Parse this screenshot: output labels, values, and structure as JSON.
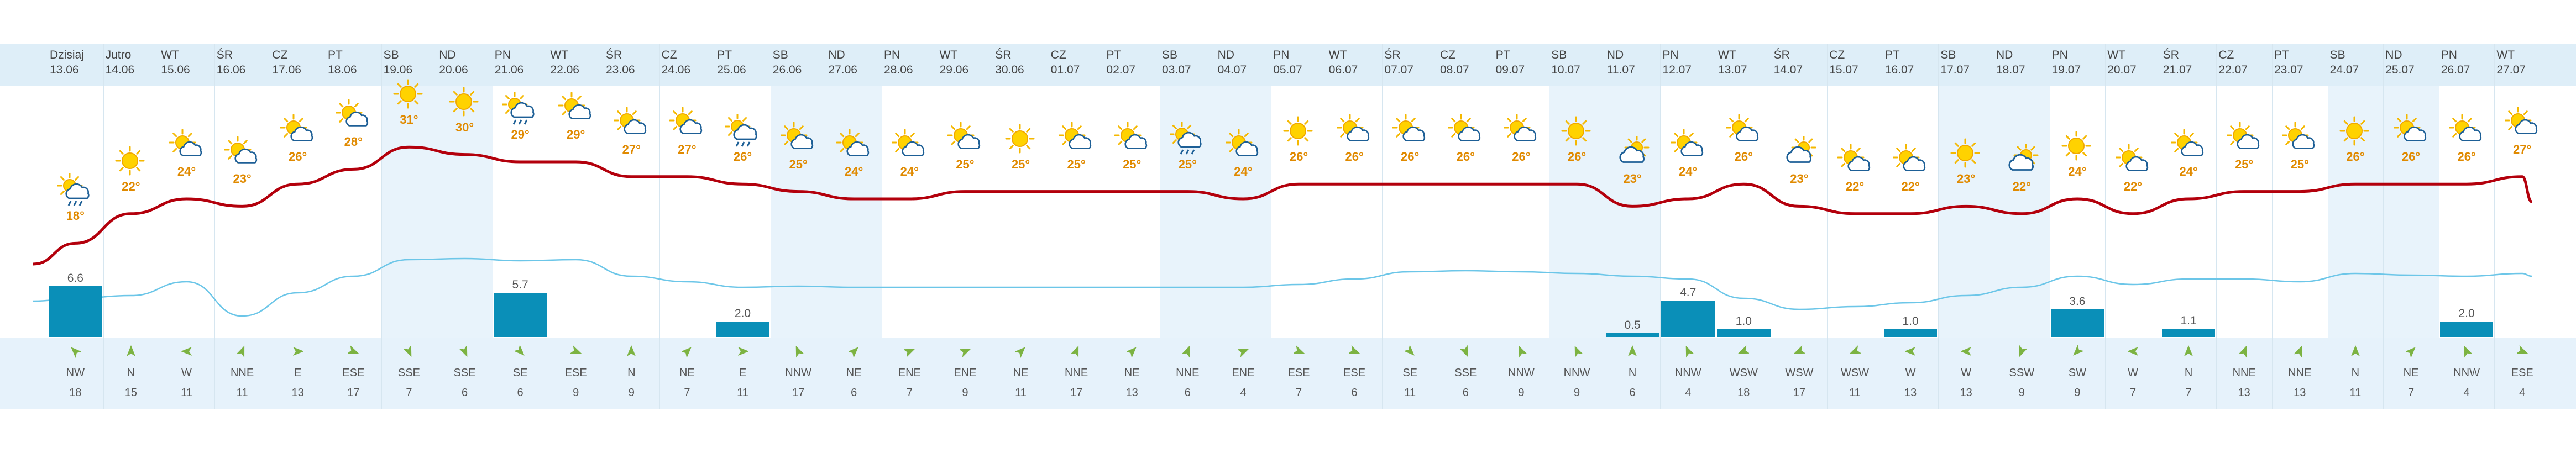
{
  "colors": {
    "header_bg": "#deeef8",
    "weekend_bg": "#e8f3fb",
    "wind_bg": "#e6f2fb",
    "temp_line": "#b3000c",
    "rain_line": "#6cc6e8",
    "bar": "#0a8fb8",
    "arrow": "#7cb342",
    "temp_label": "#e08a00"
  },
  "days": [
    {
      "name": "Dzisiaj",
      "date": "13.06",
      "temp": "18°",
      "icon": "cloud-rain-sun",
      "rain": "6.6",
      "rain_value": 6.6,
      "wdir": "NW",
      "wspd": "18",
      "wind_angle": 315,
      "weekend": false
    },
    {
      "name": "Jutro",
      "date": "14.06",
      "temp": "22°",
      "icon": "sun",
      "rain": "",
      "rain_value": 0,
      "wdir": "N",
      "wspd": "15",
      "wind_angle": 0,
      "weekend": false
    },
    {
      "name": "WT",
      "date": "15.06",
      "temp": "24°",
      "icon": "sun-cloud",
      "rain": "",
      "rain_value": 0,
      "wdir": "W",
      "wspd": "11",
      "wind_angle": 270,
      "weekend": false
    },
    {
      "name": "ŚR",
      "date": "16.06",
      "temp": "23°",
      "icon": "sun-cloud",
      "rain": "",
      "rain_value": 0,
      "wdir": "NNE",
      "wspd": "11",
      "wind_angle": 22,
      "weekend": false
    },
    {
      "name": "CZ",
      "date": "17.06",
      "temp": "26°",
      "icon": "sun-cloud",
      "rain": "",
      "rain_value": 0,
      "wdir": "E",
      "wspd": "13",
      "wind_angle": 90,
      "weekend": false
    },
    {
      "name": "PT",
      "date": "18.06",
      "temp": "28°",
      "icon": "sun-cloud",
      "rain": "",
      "rain_value": 0,
      "wdir": "ESE",
      "wspd": "17",
      "wind_angle": 112,
      "weekend": false
    },
    {
      "name": "SB",
      "date": "19.06",
      "temp": "31°",
      "icon": "sun",
      "rain": "",
      "rain_value": 0,
      "wdir": "SSE",
      "wspd": "7",
      "wind_angle": 157,
      "weekend": true
    },
    {
      "name": "ND",
      "date": "20.06",
      "temp": "30°",
      "icon": "sun",
      "rain": "",
      "rain_value": 0,
      "wdir": "SSE",
      "wspd": "6",
      "wind_angle": 157,
      "weekend": true
    },
    {
      "name": "PN",
      "date": "21.06",
      "temp": "29°",
      "icon": "cloud-rain-sun",
      "rain": "5.7",
      "rain_value": 5.7,
      "wdir": "SE",
      "wspd": "6",
      "wind_angle": 135,
      "weekend": false
    },
    {
      "name": "WT",
      "date": "22.06",
      "temp": "29°",
      "icon": "sun-cloud",
      "rain": "",
      "rain_value": 0,
      "wdir": "ESE",
      "wspd": "9",
      "wind_angle": 112,
      "weekend": false
    },
    {
      "name": "ŚR",
      "date": "23.06",
      "temp": "27°",
      "icon": "sun-cloud",
      "rain": "",
      "rain_value": 0,
      "wdir": "N",
      "wspd": "9",
      "wind_angle": 0,
      "weekend": false
    },
    {
      "name": "CZ",
      "date": "24.06",
      "temp": "27°",
      "icon": "sun-cloud",
      "rain": "",
      "rain_value": 0,
      "wdir": "NE",
      "wspd": "7",
      "wind_angle": 45,
      "weekend": false
    },
    {
      "name": "PT",
      "date": "25.06",
      "temp": "26°",
      "icon": "cloud-rain-sun",
      "rain": "2.0",
      "rain_value": 2.0,
      "wdir": "E",
      "wspd": "11",
      "wind_angle": 90,
      "weekend": false
    },
    {
      "name": "SB",
      "date": "26.06",
      "temp": "25°",
      "icon": "sun-cloud",
      "rain": "",
      "rain_value": 0,
      "wdir": "NNW",
      "wspd": "17",
      "wind_angle": 337,
      "weekend": true
    },
    {
      "name": "ND",
      "date": "27.06",
      "temp": "24°",
      "icon": "sun-cloud",
      "rain": "",
      "rain_value": 0,
      "wdir": "NE",
      "wspd": "6",
      "wind_angle": 45,
      "weekend": true
    },
    {
      "name": "PN",
      "date": "28.06",
      "temp": "24°",
      "icon": "sun-cloud",
      "rain": "",
      "rain_value": 0,
      "wdir": "ENE",
      "wspd": "7",
      "wind_angle": 67,
      "weekend": false
    },
    {
      "name": "WT",
      "date": "29.06",
      "temp": "25°",
      "icon": "sun-cloud",
      "rain": "",
      "rain_value": 0,
      "wdir": "ENE",
      "wspd": "9",
      "wind_angle": 67,
      "weekend": false
    },
    {
      "name": "ŚR",
      "date": "30.06",
      "temp": "25°",
      "icon": "sun",
      "rain": "",
      "rain_value": 0,
      "wdir": "NE",
      "wspd": "11",
      "wind_angle": 45,
      "weekend": false
    },
    {
      "name": "CZ",
      "date": "01.07",
      "temp": "25°",
      "icon": "sun-cloud",
      "rain": "",
      "rain_value": 0,
      "wdir": "NNE",
      "wspd": "17",
      "wind_angle": 22,
      "weekend": false
    },
    {
      "name": "PT",
      "date": "02.07",
      "temp": "25°",
      "icon": "sun-cloud",
      "rain": "",
      "rain_value": 0,
      "wdir": "NE",
      "wspd": "13",
      "wind_angle": 45,
      "weekend": false
    },
    {
      "name": "SB",
      "date": "03.07",
      "temp": "25°",
      "icon": "cloud-rain-sun",
      "rain": "",
      "rain_value": 0,
      "wdir": "NNE",
      "wspd": "6",
      "wind_angle": 22,
      "weekend": true
    },
    {
      "name": "ND",
      "date": "04.07",
      "temp": "24°",
      "icon": "sun-cloud",
      "rain": "",
      "rain_value": 0,
      "wdir": "ENE",
      "wspd": "4",
      "wind_angle": 67,
      "weekend": true
    },
    {
      "name": "PN",
      "date": "05.07",
      "temp": "26°",
      "icon": "sun",
      "rain": "",
      "rain_value": 0,
      "wdir": "ESE",
      "wspd": "7",
      "wind_angle": 112,
      "weekend": false
    },
    {
      "name": "WT",
      "date": "06.07",
      "temp": "26°",
      "icon": "sun-cloud",
      "rain": "",
      "rain_value": 0,
      "wdir": "ESE",
      "wspd": "6",
      "wind_angle": 112,
      "weekend": false
    },
    {
      "name": "ŚR",
      "date": "07.07",
      "temp": "26°",
      "icon": "sun-cloud",
      "rain": "",
      "rain_value": 0,
      "wdir": "SE",
      "wspd": "11",
      "wind_angle": 135,
      "weekend": false
    },
    {
      "name": "CZ",
      "date": "08.07",
      "temp": "26°",
      "icon": "sun-cloud",
      "rain": "",
      "rain_value": 0,
      "wdir": "SSE",
      "wspd": "6",
      "wind_angle": 157,
      "weekend": false
    },
    {
      "name": "PT",
      "date": "09.07",
      "temp": "26°",
      "icon": "sun-cloud",
      "rain": "",
      "rain_value": 0,
      "wdir": "NNW",
      "wspd": "9",
      "wind_angle": 337,
      "weekend": false
    },
    {
      "name": "SB",
      "date": "10.07",
      "temp": "26°",
      "icon": "sun",
      "rain": "",
      "rain_value": 0,
      "wdir": "NNW",
      "wspd": "9",
      "wind_angle": 337,
      "weekend": true
    },
    {
      "name": "ND",
      "date": "11.07",
      "temp": "23°",
      "icon": "cloud-sun",
      "rain": "0.5",
      "rain_value": 0.5,
      "wdir": "N",
      "wspd": "6",
      "wind_angle": 0,
      "weekend": true
    },
    {
      "name": "PN",
      "date": "12.07",
      "temp": "24°",
      "icon": "sun-cloud",
      "rain": "4.7",
      "rain_value": 4.7,
      "wdir": "NNW",
      "wspd": "4",
      "wind_angle": 337,
      "weekend": false
    },
    {
      "name": "WT",
      "date": "13.07",
      "temp": "26°",
      "icon": "sun-cloud",
      "rain": "1.0",
      "rain_value": 1.0,
      "wdir": "WSW",
      "wspd": "18",
      "wind_angle": 247,
      "weekend": false
    },
    {
      "name": "ŚR",
      "date": "14.07",
      "temp": "23°",
      "icon": "cloud-sun",
      "rain": "",
      "rain_value": 0,
      "wdir": "WSW",
      "wspd": "17",
      "wind_angle": 247,
      "weekend": false
    },
    {
      "name": "CZ",
      "date": "15.07",
      "temp": "22°",
      "icon": "sun-cloud",
      "rain": "",
      "rain_value": 0,
      "wdir": "WSW",
      "wspd": "11",
      "wind_angle": 247,
      "weekend": false
    },
    {
      "name": "PT",
      "date": "16.07",
      "temp": "22°",
      "icon": "sun-cloud",
      "rain": "1.0",
      "rain_value": 1.0,
      "wdir": "W",
      "wspd": "13",
      "wind_angle": 270,
      "weekend": false
    },
    {
      "name": "SB",
      "date": "17.07",
      "temp": "23°",
      "icon": "sun",
      "rain": "",
      "rain_value": 0,
      "wdir": "W",
      "wspd": "13",
      "wind_angle": 270,
      "weekend": true
    },
    {
      "name": "ND",
      "date": "18.07",
      "temp": "22°",
      "icon": "cloud-sun",
      "rain": "",
      "rain_value": 0,
      "wdir": "SSW",
      "wspd": "9",
      "wind_angle": 202,
      "weekend": true
    },
    {
      "name": "PN",
      "date": "19.07",
      "temp": "24°",
      "icon": "sun",
      "rain": "3.6",
      "rain_value": 3.6,
      "wdir": "SW",
      "wspd": "9",
      "wind_angle": 225,
      "weekend": false
    },
    {
      "name": "WT",
      "date": "20.07",
      "temp": "22°",
      "icon": "sun-cloud",
      "rain": "",
      "rain_value": 0,
      "wdir": "W",
      "wspd": "7",
      "wind_angle": 270,
      "weekend": false
    },
    {
      "name": "ŚR",
      "date": "21.07",
      "temp": "24°",
      "icon": "sun-cloud",
      "rain": "1.1",
      "rain_value": 1.1,
      "wdir": "N",
      "wspd": "7",
      "wind_angle": 0,
      "weekend": false
    },
    {
      "name": "CZ",
      "date": "22.07",
      "temp": "25°",
      "icon": "sun-cloud",
      "rain": "",
      "rain_value": 0,
      "wdir": "NNE",
      "wspd": "13",
      "wind_angle": 22,
      "weekend": false
    },
    {
      "name": "PT",
      "date": "23.07",
      "temp": "25°",
      "icon": "sun-cloud",
      "rain": "",
      "rain_value": 0,
      "wdir": "NNE",
      "wspd": "13",
      "wind_angle": 22,
      "weekend": false
    },
    {
      "name": "SB",
      "date": "24.07",
      "temp": "26°",
      "icon": "sun",
      "rain": "",
      "rain_value": 0,
      "wdir": "N",
      "wspd": "11",
      "wind_angle": 0,
      "weekend": true
    },
    {
      "name": "ND",
      "date": "25.07",
      "temp": "26°",
      "icon": "sun-cloud",
      "rain": "",
      "rain_value": 0,
      "wdir": "NE",
      "wspd": "7",
      "wind_angle": 45,
      "weekend": true
    },
    {
      "name": "PN",
      "date": "26.07",
      "temp": "26°",
      "icon": "sun-cloud",
      "rain": "2.0",
      "rain_value": 2.0,
      "wdir": "NNW",
      "wspd": "4",
      "wind_angle": 337,
      "weekend": false
    },
    {
      "name": "WT",
      "date": "27.07",
      "temp": "27°",
      "icon": "sun-cloud",
      "rain": "",
      "rain_value": 0,
      "wdir": "ESE",
      "wspd": "4",
      "wind_angle": 112,
      "weekend": false
    }
  ]
}
